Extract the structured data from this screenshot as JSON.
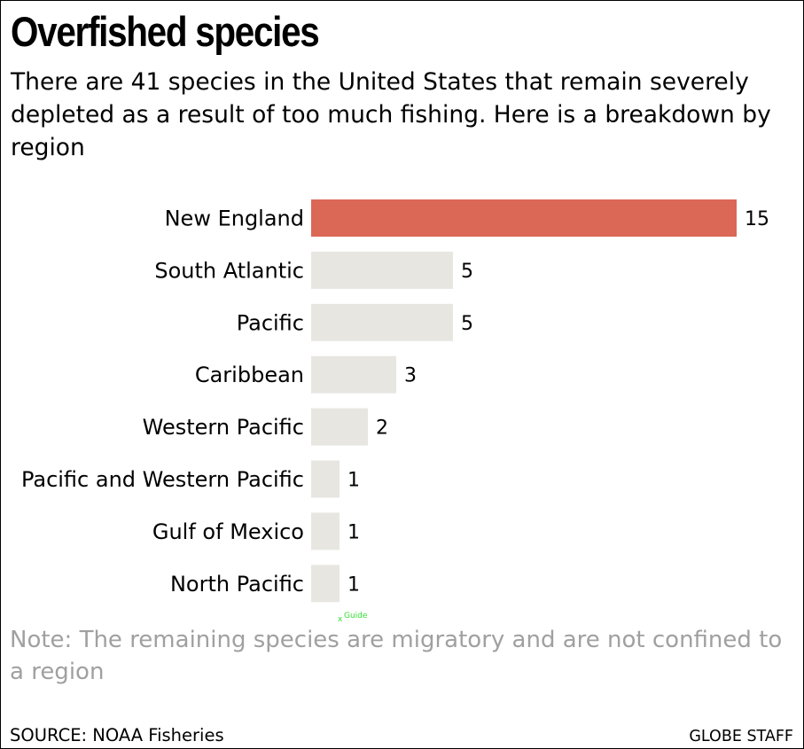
{
  "title": "Overfished species",
  "subtitle": "There are 41 species in the United States that remain severely depleted as a result of too much fishing. Here is a breakdown by region",
  "note": "Note: The remaining species are migratory and are not confined to a region",
  "source": "SOURCE: NOAA Fisheries",
  "credit": "GLOBE STAFF",
  "guide_mark": "Guide",
  "colors": {
    "highlight": "#db6757",
    "bar": "#e7e6e1",
    "note_text": "#a0a0a0",
    "guide": "#33dd33"
  },
  "chart_data": {
    "type": "bar",
    "orientation": "horizontal",
    "categories": [
      "New England",
      "South Atlantic",
      "Pacific",
      "Caribbean",
      "Western Pacific",
      "Pacific and Western Pacific",
      "Gulf of Mexico",
      "North Pacific"
    ],
    "values": [
      15,
      5,
      5,
      3,
      2,
      1,
      1,
      1
    ],
    "highlight_index": 0,
    "xlim": [
      0,
      15
    ],
    "grid": false,
    "legend": "none",
    "data_labels": true
  }
}
